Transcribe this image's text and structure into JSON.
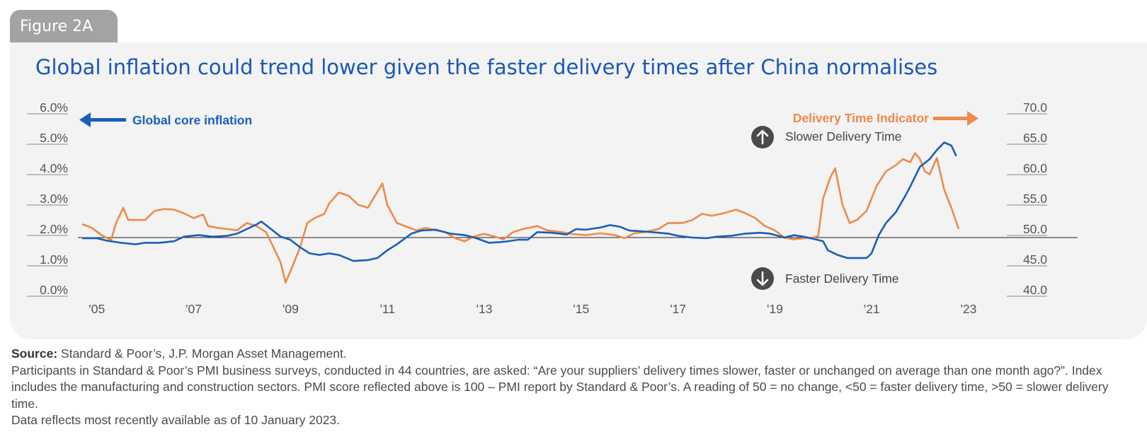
{
  "figure_label": "Figure 2A",
  "chart_data": {
    "type": "line",
    "title": "Global inflation could trend lower given the faster delivery times after China normalises",
    "x_ticks": [
      "'05",
      "'07",
      "'09",
      "'11",
      "'13",
      "'15",
      "'17",
      "'19",
      "'21",
      "'23"
    ],
    "x_tick_years": [
      2005,
      2007,
      2009,
      2011,
      2013,
      2015,
      2017,
      2019,
      2021,
      2023
    ],
    "x_range": [
      2004.9,
      2023.0
    ],
    "y_left": {
      "ticks": [
        "6.0%",
        "5.0%",
        "4.0%",
        "3.0%",
        "2.0%",
        "1.0%",
        "0.0%"
      ],
      "range": [
        0,
        6
      ]
    },
    "y_right": {
      "ticks": [
        "70.0",
        "65.0",
        "60.0",
        "55.0",
        "50.0",
        "45.0",
        "40.0"
      ],
      "range": [
        40,
        70
      ]
    },
    "reference_line": {
      "axis": "right",
      "value": 48.6
    },
    "grid": false,
    "series": [
      {
        "name": "Global core inflation",
        "axis": "left",
        "color": "#1a5eb8",
        "points": [
          [
            2004.9,
            1.7
          ],
          [
            2005.2,
            1.7
          ],
          [
            2005.4,
            1.62
          ],
          [
            2005.7,
            1.55
          ],
          [
            2006.0,
            1.5
          ],
          [
            2006.2,
            1.55
          ],
          [
            2006.5,
            1.55
          ],
          [
            2006.8,
            1.6
          ],
          [
            2007.0,
            1.75
          ],
          [
            2007.3,
            1.8
          ],
          [
            2007.6,
            1.75
          ],
          [
            2007.9,
            1.78
          ],
          [
            2008.1,
            1.85
          ],
          [
            2008.3,
            2.0
          ],
          [
            2008.5,
            2.15
          ],
          [
            2008.6,
            2.25
          ],
          [
            2008.8,
            2.0
          ],
          [
            2009.0,
            1.75
          ],
          [
            2009.2,
            1.65
          ],
          [
            2009.4,
            1.4
          ],
          [
            2009.6,
            1.2
          ],
          [
            2009.8,
            1.15
          ],
          [
            2010.0,
            1.2
          ],
          [
            2010.2,
            1.15
          ],
          [
            2010.5,
            0.95
          ],
          [
            2010.8,
            0.98
          ],
          [
            2011.0,
            1.05
          ],
          [
            2011.2,
            1.3
          ],
          [
            2011.4,
            1.5
          ],
          [
            2011.7,
            1.85
          ],
          [
            2011.9,
            1.95
          ],
          [
            2012.2,
            1.98
          ],
          [
            2012.5,
            1.85
          ],
          [
            2012.8,
            1.8
          ],
          [
            2013.0,
            1.72
          ],
          [
            2013.3,
            1.55
          ],
          [
            2013.6,
            1.58
          ],
          [
            2013.9,
            1.65
          ],
          [
            2014.1,
            1.65
          ],
          [
            2014.3,
            1.9
          ],
          [
            2014.6,
            1.88
          ],
          [
            2014.9,
            1.82
          ],
          [
            2015.1,
            2.0
          ],
          [
            2015.3,
            1.98
          ],
          [
            2015.6,
            2.05
          ],
          [
            2015.8,
            2.13
          ],
          [
            2016.0,
            2.08
          ],
          [
            2016.2,
            1.95
          ],
          [
            2016.5,
            1.92
          ],
          [
            2016.8,
            1.88
          ],
          [
            2017.0,
            1.85
          ],
          [
            2017.2,
            1.78
          ],
          [
            2017.5,
            1.72
          ],
          [
            2017.8,
            1.7
          ],
          [
            2018.0,
            1.75
          ],
          [
            2018.3,
            1.78
          ],
          [
            2018.6,
            1.85
          ],
          [
            2018.9,
            1.88
          ],
          [
            2019.1,
            1.85
          ],
          [
            2019.4,
            1.72
          ],
          [
            2019.6,
            1.8
          ],
          [
            2019.8,
            1.75
          ],
          [
            2020.0,
            1.68
          ],
          [
            2020.2,
            1.6
          ],
          [
            2020.3,
            1.3
          ],
          [
            2020.5,
            1.15
          ],
          [
            2020.7,
            1.05
          ],
          [
            2020.9,
            1.05
          ],
          [
            2021.1,
            1.05
          ],
          [
            2021.2,
            1.2
          ],
          [
            2021.35,
            1.8
          ],
          [
            2021.5,
            2.2
          ],
          [
            2021.7,
            2.55
          ],
          [
            2021.9,
            3.1
          ],
          [
            2022.0,
            3.4
          ],
          [
            2022.2,
            4.05
          ],
          [
            2022.4,
            4.3
          ],
          [
            2022.55,
            4.6
          ],
          [
            2022.7,
            4.85
          ],
          [
            2022.85,
            4.75
          ],
          [
            2022.95,
            4.4
          ]
        ]
      },
      {
        "name": "Delivery Time Indicator",
        "axis": "right",
        "color": "#ee8a4a",
        "points": [
          [
            2004.9,
            50.8
          ],
          [
            2005.1,
            50.2
          ],
          [
            2005.3,
            49.0
          ],
          [
            2005.5,
            48.2
          ],
          [
            2005.6,
            51.0
          ],
          [
            2005.75,
            53.5
          ],
          [
            2005.85,
            51.5
          ],
          [
            2006.0,
            51.5
          ],
          [
            2006.2,
            51.5
          ],
          [
            2006.4,
            53.0
          ],
          [
            2006.6,
            53.3
          ],
          [
            2006.8,
            53.2
          ],
          [
            2007.0,
            52.6
          ],
          [
            2007.2,
            51.8
          ],
          [
            2007.4,
            52.4
          ],
          [
            2007.5,
            50.5
          ],
          [
            2007.7,
            50.2
          ],
          [
            2007.9,
            50.0
          ],
          [
            2008.1,
            49.8
          ],
          [
            2008.3,
            51.0
          ],
          [
            2008.5,
            50.5
          ],
          [
            2008.7,
            49.5
          ],
          [
            2008.85,
            47.0
          ],
          [
            2009.0,
            44.5
          ],
          [
            2009.1,
            41.2
          ],
          [
            2009.25,
            44.0
          ],
          [
            2009.4,
            47.0
          ],
          [
            2009.55,
            51.0
          ],
          [
            2009.7,
            51.8
          ],
          [
            2009.9,
            52.5
          ],
          [
            2010.0,
            54.2
          ],
          [
            2010.2,
            56.0
          ],
          [
            2010.4,
            55.5
          ],
          [
            2010.6,
            54.0
          ],
          [
            2010.8,
            53.5
          ],
          [
            2010.95,
            55.5
          ],
          [
            2011.1,
            57.5
          ],
          [
            2011.2,
            54.0
          ],
          [
            2011.4,
            51.0
          ],
          [
            2011.6,
            50.4
          ],
          [
            2011.8,
            49.8
          ],
          [
            2012.0,
            50.2
          ],
          [
            2012.2,
            49.8
          ],
          [
            2012.4,
            49.5
          ],
          [
            2012.6,
            48.5
          ],
          [
            2012.8,
            48.0
          ],
          [
            2013.0,
            48.8
          ],
          [
            2013.2,
            49.2
          ],
          [
            2013.4,
            48.8
          ],
          [
            2013.6,
            48.3
          ],
          [
            2013.8,
            49.5
          ],
          [
            2014.0,
            50.0
          ],
          [
            2014.3,
            50.5
          ],
          [
            2014.5,
            49.8
          ],
          [
            2014.8,
            49.5
          ],
          [
            2015.0,
            49.2
          ],
          [
            2015.3,
            49.0
          ],
          [
            2015.6,
            49.3
          ],
          [
            2015.9,
            49.0
          ],
          [
            2016.1,
            48.5
          ],
          [
            2016.3,
            49.3
          ],
          [
            2016.5,
            49.5
          ],
          [
            2016.8,
            50.0
          ],
          [
            2017.0,
            51.0
          ],
          [
            2017.3,
            51.0
          ],
          [
            2017.5,
            51.5
          ],
          [
            2017.7,
            52.5
          ],
          [
            2017.9,
            52.2
          ],
          [
            2018.1,
            52.5
          ],
          [
            2018.4,
            53.2
          ],
          [
            2018.6,
            52.6
          ],
          [
            2018.8,
            51.8
          ],
          [
            2019.0,
            50.5
          ],
          [
            2019.2,
            49.8
          ],
          [
            2019.4,
            48.6
          ],
          [
            2019.6,
            48.3
          ],
          [
            2019.8,
            48.5
          ],
          [
            2020.0,
            48.6
          ],
          [
            2020.1,
            48.9
          ],
          [
            2020.2,
            55.0
          ],
          [
            2020.35,
            58.5
          ],
          [
            2020.45,
            60.0
          ],
          [
            2020.6,
            54.0
          ],
          [
            2020.75,
            51.0
          ],
          [
            2020.9,
            51.5
          ],
          [
            2021.1,
            53.0
          ],
          [
            2021.3,
            57.0
          ],
          [
            2021.5,
            59.5
          ],
          [
            2021.7,
            60.5
          ],
          [
            2021.85,
            61.5
          ],
          [
            2022.0,
            61.0
          ],
          [
            2022.1,
            62.5
          ],
          [
            2022.2,
            61.5
          ],
          [
            2022.3,
            59.5
          ],
          [
            2022.4,
            59.0
          ],
          [
            2022.55,
            61.7
          ],
          [
            2022.7,
            56.5
          ],
          [
            2022.85,
            53.5
          ],
          [
            2023.0,
            50.0
          ]
        ]
      }
    ],
    "legend": [
      {
        "label": "Global core inflation",
        "arrow": "left-arrow-icon"
      },
      {
        "label": "Delivery Time Indicator",
        "arrow": "right-arrow-icon"
      }
    ],
    "annotations": [
      {
        "label": "Slower Delivery Time",
        "icon": "arrow-up-circle-icon"
      },
      {
        "label": "Faster Delivery Time",
        "icon": "arrow-down-circle-icon"
      }
    ]
  },
  "source": {
    "heading": "Source:",
    "text": "Standard & Poor’s, J.P. Morgan Asset Management.",
    "notes": [
      "Participants in Standard & Poor’s PMI business surveys, conducted in 44 countries, are asked: “Are your suppliers’ delivery times slower, faster or unchanged on average than one month ago?”. Index includes the manufacturing and construction sectors. PMI score reflected above is 100 – PMI report by Standard & Poor’s. A reading of 50 = no change, <50 = faster delivery time, >50 = slower delivery time.",
      "Data reflects most recently available as of 10 January 2023."
    ]
  },
  "colors": {
    "title": "#1a57b8",
    "inflation": "#1a5eb8",
    "delivery": "#ee8a4a",
    "panel": "#f3f3f3",
    "tab": "#a3a3a3",
    "axis_text": "#555555",
    "icon_circle": "#4a4a4a"
  }
}
